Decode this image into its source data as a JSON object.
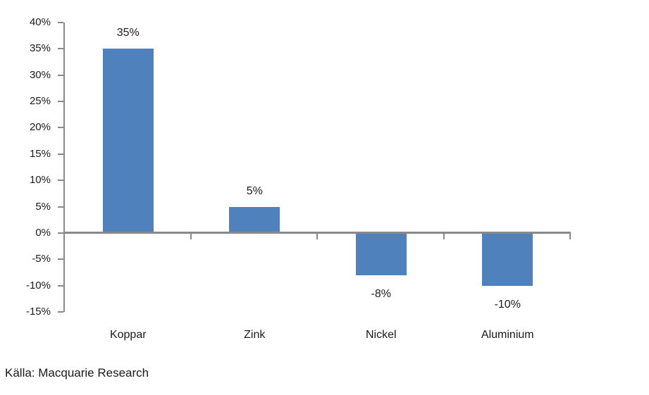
{
  "chart_data": {
    "type": "bar",
    "categories": [
      "Koppar",
      "Zink",
      "Nickel",
      "Aluminium"
    ],
    "values": [
      35,
      5,
      -8,
      -10
    ],
    "data_labels": [
      "35%",
      "5%",
      "-8%",
      "-10%"
    ],
    "title": "",
    "xlabel": "",
    "ylabel": "",
    "ylim": [
      -15,
      40
    ],
    "ytick_step": 5,
    "ytick_labels": [
      "40%",
      "35%",
      "30%",
      "25%",
      "20%",
      "15%",
      "10%",
      "5%",
      "0%",
      "-5%",
      "-10%",
      "-15%"
    ],
    "grid": false,
    "legend": "none",
    "bar_color": "#4F81BD",
    "axis_color": "#898989",
    "text_color": "#1a1a1a"
  },
  "source_note": "Källa: Macquarie Research"
}
